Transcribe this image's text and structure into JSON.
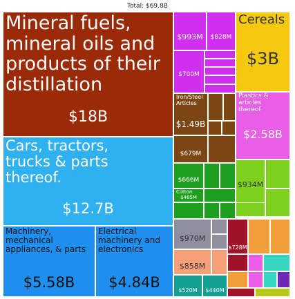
{
  "chart_data": {
    "type": "treemap",
    "title": "Total: $69.8B",
    "colors": {
      "red": "#9a2a08",
      "blue": "#1e8fee",
      "lightblue": "#2fb1f1",
      "purple": "#d02ff0",
      "yellow": "#f5c90e",
      "brown": "#7b4614",
      "pink": "#e95ee6",
      "green": "#1f9f1f",
      "lightgreen": "#7fd11f",
      "gray": "#8e8e9e",
      "darkred": "#a0132a",
      "orange": "#f29f3a",
      "salmon": "#f6a07a",
      "teal": "#13a093",
      "aqua": "#36d6c2",
      "darkpurple": "#6b28b8",
      "olive": "#b8c91c"
    },
    "tiles": [
      {
        "label": "Mineral fuels,\nmineral oils and\nproducts of their\ndistillation",
        "value_label": "$18B",
        "value_b": 18.0,
        "color": "red"
      },
      {
        "label": "Cars, tractors,\ntrucks & parts\nthereof.",
        "value_label": "$12.7B",
        "value_b": 12.7,
        "color": "lightblue"
      },
      {
        "label": "Machinery,\nmechanical\nappliances, & parts",
        "value_label": "$5.58B",
        "value_b": 5.58,
        "color": "blue"
      },
      {
        "label": "Electrical\nmachinery and\nelectronics",
        "value_label": "$4.84B",
        "value_b": 4.84,
        "color": "blue"
      },
      {
        "label": "Cereals",
        "value_label": "$3B",
        "value_b": 3.0,
        "color": "yellow"
      },
      {
        "label": "Plastics &\narticles\nthereof",
        "value_label": "$2.58B",
        "value_b": 2.58,
        "color": "pink"
      },
      {
        "label": "Iron/Steel\nArticles",
        "value_label": "$1.49B",
        "value_b": 1.49,
        "color": "brown"
      },
      {
        "label": "",
        "value_label": "$993M",
        "value_b": 0.993,
        "color": "purple"
      },
      {
        "label": "",
        "value_label": "$828M",
        "value_b": 0.828,
        "color": "purple"
      },
      {
        "label": "",
        "value_label": "$700M",
        "value_b": 0.7,
        "color": "purple"
      },
      {
        "label": "",
        "value_label": "$679M",
        "value_b": 0.679,
        "color": "brown"
      },
      {
        "label": "",
        "value_label": "$666M",
        "value_b": 0.666,
        "color": "green"
      },
      {
        "label": "",
        "value_label": "$934M",
        "value_b": 0.934,
        "color": "lightgreen"
      },
      {
        "label": "",
        "value_label": "$970M",
        "value_b": 0.97,
        "color": "gray"
      },
      {
        "label": "",
        "value_label": "$858M",
        "value_b": 0.858,
        "color": "salmon"
      },
      {
        "label": "",
        "value_label": "$728M",
        "value_b": 0.728,
        "color": "darkred"
      },
      {
        "label": "",
        "value_label": "$520M",
        "value_b": 0.52,
        "color": "teal"
      },
      {
        "label": "",
        "value_label": "$440M",
        "value_b": 0.44,
        "color": "teal"
      },
      {
        "label": "Cotton",
        "value_label": "$465M",
        "value_b": 0.465,
        "color": "green"
      }
    ]
  }
}
